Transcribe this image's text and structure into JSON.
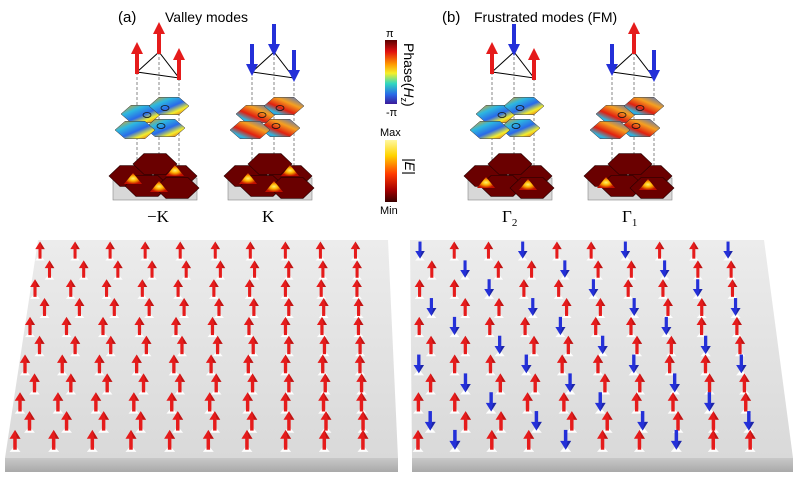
{
  "panels": [
    {
      "letter": "(a)",
      "title": "Valley modes"
    },
    {
      "letter": "(b)",
      "title": "Frustrated modes (FM)"
    }
  ],
  "modes": [
    {
      "label": "−K",
      "spins": [
        "up",
        "up",
        "up"
      ]
    },
    {
      "label": "K",
      "spins": [
        "down",
        "down",
        "down"
      ]
    },
    {
      "label": "Γ",
      "sub": "2",
      "spins": [
        "up",
        "down",
        "up"
      ]
    },
    {
      "label": "Γ",
      "sub": "1",
      "spins": [
        "down",
        "up",
        "down"
      ]
    }
  ],
  "phase_colorbar": {
    "title": "Phase(",
    "title_var": "H",
    "title_sub": "z",
    "title_end": ")",
    "max_label": "π",
    "min_label": "-π"
  },
  "field_colorbar": {
    "title": "|E|",
    "max_label": "Max",
    "min_label": "Min"
  },
  "colors": {
    "up_arrow": "#e51b1b",
    "down_arrow": "#2430d8",
    "slab": "#e2e2e2",
    "hot": "#ffe600",
    "cold": "#5a0000"
  },
  "lattices": [
    {
      "name": "valley-lattice",
      "pattern": "all-up"
    },
    {
      "name": "frustrated-lattice",
      "pattern": "mixed-up-down"
    }
  ]
}
